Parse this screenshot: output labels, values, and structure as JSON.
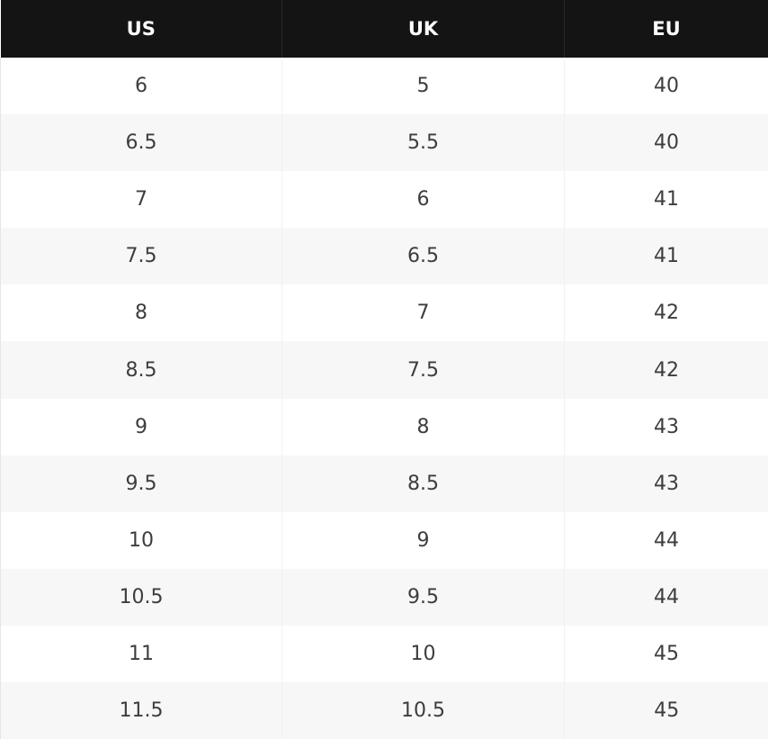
{
  "size_chart": {
    "headers": [
      "US",
      "UK",
      "EU"
    ],
    "rows": [
      [
        "6",
        "5",
        "40"
      ],
      [
        "6.5",
        "5.5",
        "40"
      ],
      [
        "7",
        "6",
        "41"
      ],
      [
        "7.5",
        "6.5",
        "41"
      ],
      [
        "8",
        "7",
        "42"
      ],
      [
        "8.5",
        "7.5",
        "42"
      ],
      [
        "9",
        "8",
        "43"
      ],
      [
        "9.5",
        "8.5",
        "43"
      ],
      [
        "10",
        "9",
        "44"
      ],
      [
        "10.5",
        "9.5",
        "44"
      ],
      [
        "11",
        "10",
        "45"
      ],
      [
        "11.5",
        "10.5",
        "45"
      ]
    ]
  },
  "colors": {
    "header_background": "#141414",
    "header_text": "#ffffff",
    "row_alt_background": "#f7f7f7",
    "cell_text": "#3d3d3d"
  }
}
